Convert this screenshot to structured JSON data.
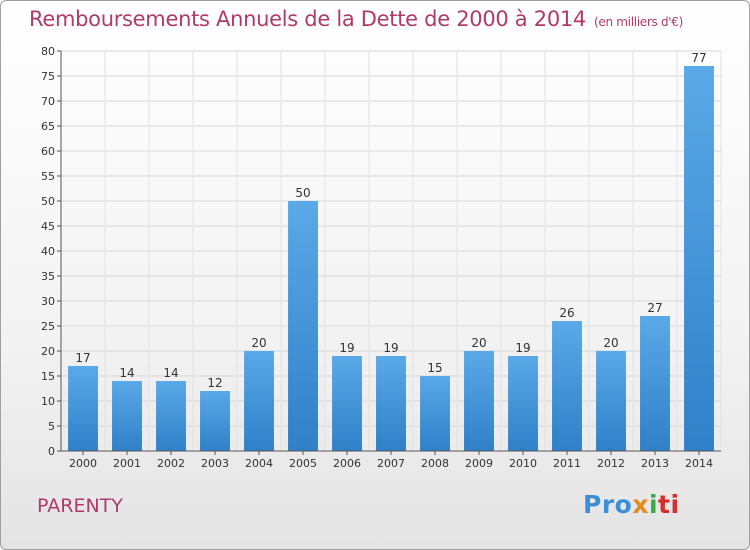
{
  "header": {
    "title": "Remboursements Annuels de la Dette de 2000 à 2014",
    "subtitle": "(en milliers d'€)"
  },
  "commune": "PARENTY",
  "logo": {
    "text": "Proxiti",
    "parts": [
      "Pro",
      "x",
      "i",
      "ti"
    ]
  },
  "colors": {
    "title": "#b03a6a",
    "bar_light": "#5aa9e8",
    "bar_dark": "#2f80c8"
  },
  "chart_data": {
    "type": "bar",
    "title": "Remboursements Annuels de la Dette de 2000 à 2014",
    "subtitle": "(en milliers d'€)",
    "categories": [
      "2000",
      "2001",
      "2002",
      "2003",
      "2004",
      "2005",
      "2006",
      "2007",
      "2008",
      "2009",
      "2010",
      "2011",
      "2012",
      "2013",
      "2014"
    ],
    "values": [
      17,
      14,
      14,
      12,
      20,
      50,
      19,
      19,
      15,
      20,
      19,
      26,
      20,
      27,
      77
    ],
    "ylim": [
      0,
      80
    ],
    "yticks": [
      0,
      5,
      10,
      15,
      20,
      25,
      30,
      35,
      40,
      45,
      50,
      55,
      60,
      65,
      70,
      75,
      80
    ],
    "grid": true,
    "legend": "none"
  }
}
